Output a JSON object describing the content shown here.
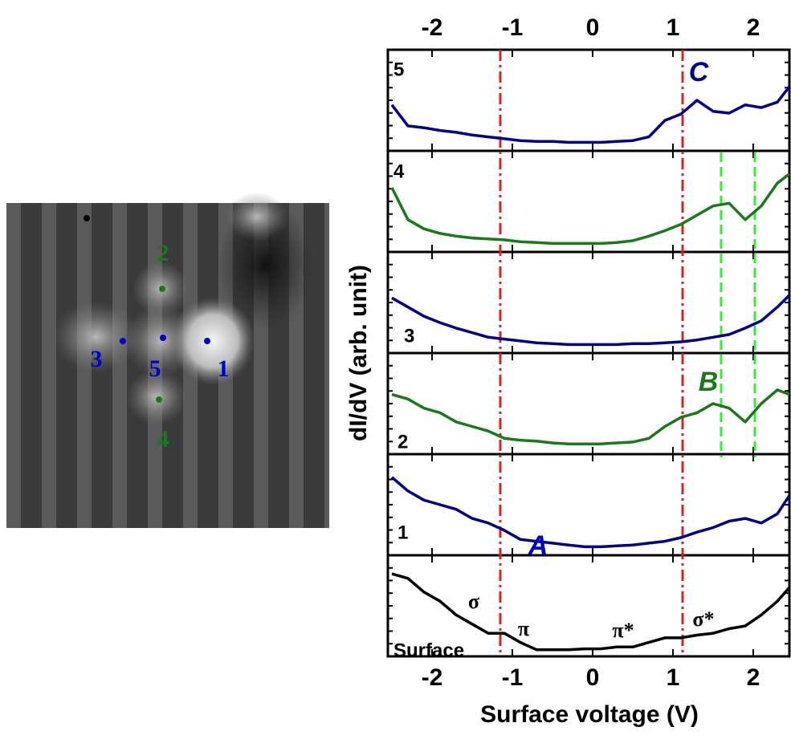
{
  "image": {
    "labels": [
      "1",
      "2",
      "3",
      "4",
      "5"
    ]
  },
  "chart_data": {
    "type": "line",
    "xlabel": "Surface voltage (V)",
    "ylabel": "dI/dV (arb. unit)",
    "x": [
      -2.5,
      -2.3,
      -2.1,
      -1.9,
      -1.7,
      -1.5,
      -1.3,
      -1.1,
      -0.9,
      -0.7,
      -0.5,
      -0.3,
      -0.1,
      0.1,
      0.3,
      0.5,
      0.7,
      0.9,
      1.1,
      1.3,
      1.5,
      1.7,
      1.9,
      2.1,
      2.3,
      2.45
    ],
    "xlim": [
      -2.55,
      2.45
    ],
    "xticks": [
      -2,
      -1,
      0,
      1,
      2
    ],
    "ylim": [
      0,
      1
    ],
    "series": [
      {
        "name": "5",
        "color": "#00008b",
        "values": [
          0.45,
          0.22,
          0.2,
          0.17,
          0.15,
          0.12,
          0.1,
          0.08,
          0.06,
          0.05,
          0.05,
          0.04,
          0.04,
          0.04,
          0.05,
          0.06,
          0.1,
          0.28,
          0.35,
          0.5,
          0.38,
          0.36,
          0.45,
          0.42,
          0.48,
          0.65
        ]
      },
      {
        "name": "4",
        "color": "#1a7a1a",
        "values": [
          0.65,
          0.3,
          0.2,
          0.15,
          0.12,
          0.1,
          0.09,
          0.08,
          0.06,
          0.05,
          0.04,
          0.04,
          0.04,
          0.04,
          0.05,
          0.07,
          0.12,
          0.18,
          0.25,
          0.35,
          0.45,
          0.48,
          0.3,
          0.45,
          0.7,
          0.8
        ]
      },
      {
        "name": "3",
        "color": "#00008b",
        "values": [
          0.55,
          0.45,
          0.35,
          0.28,
          0.22,
          0.17,
          0.12,
          0.1,
          0.08,
          0.06,
          0.05,
          0.04,
          0.04,
          0.04,
          0.04,
          0.05,
          0.05,
          0.06,
          0.07,
          0.09,
          0.12,
          0.15,
          0.22,
          0.3,
          0.45,
          0.58
        ]
      },
      {
        "name": "2",
        "color": "#1a7a1a",
        "values": [
          0.6,
          0.55,
          0.45,
          0.4,
          0.3,
          0.25,
          0.2,
          0.12,
          0.1,
          0.09,
          0.07,
          0.06,
          0.06,
          0.06,
          0.07,
          0.08,
          0.12,
          0.25,
          0.35,
          0.4,
          0.5,
          0.45,
          0.3,
          0.5,
          0.65,
          0.6
        ]
      },
      {
        "name": "1",
        "color": "#00008b",
        "values": [
          0.8,
          0.65,
          0.55,
          0.5,
          0.45,
          0.35,
          0.3,
          0.22,
          0.12,
          0.1,
          0.08,
          0.06,
          0.04,
          0.04,
          0.05,
          0.06,
          0.08,
          0.1,
          0.14,
          0.2,
          0.25,
          0.32,
          0.35,
          0.3,
          0.4,
          0.6
        ]
      },
      {
        "name": "Surface",
        "color": "#000000",
        "values": [
          0.85,
          0.8,
          0.65,
          0.55,
          0.4,
          0.3,
          0.2,
          0.2,
          0.1,
          0.02,
          0.02,
          0.02,
          0.03,
          0.03,
          0.05,
          0.05,
          0.1,
          0.15,
          0.15,
          0.18,
          0.2,
          0.25,
          0.28,
          0.4,
          0.55,
          0.7
        ]
      }
    ],
    "red_lines": [
      -1.15,
      1.12
    ],
    "green_lines": [
      1.6,
      2.02
    ],
    "annotations": [
      {
        "text": "C",
        "color": "#00008b"
      },
      {
        "text": "B",
        "color": "#1a7a1a"
      },
      {
        "text": "A",
        "color": "#0000cd"
      },
      {
        "text": "σ",
        "color": "#000000"
      },
      {
        "text": "π",
        "color": "#000000"
      },
      {
        "text": "π*",
        "color": "#000000"
      },
      {
        "text": "σ*",
        "color": "#000000"
      }
    ]
  }
}
